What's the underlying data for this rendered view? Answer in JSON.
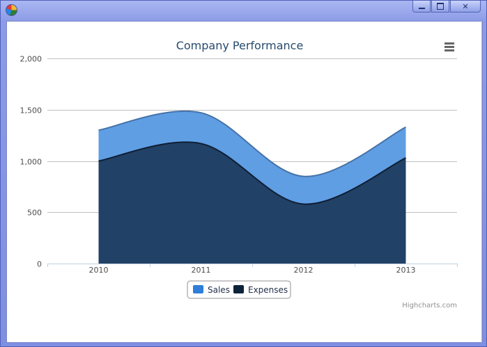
{
  "window": {
    "app_icon": "pie-chart-icon",
    "min_icon": "minimize-icon",
    "max_icon": "maximize-icon",
    "close_glyph": "✕"
  },
  "chart_data": {
    "type": "area",
    "title": "Company Performance",
    "categories": [
      "2010",
      "2011",
      "2012",
      "2013"
    ],
    "series": [
      {
        "name": "Sales",
        "values": [
          1300,
          1470,
          850,
          1330
        ],
        "color": "#5f9ee3"
      },
      {
        "name": "Expenses",
        "values": [
          1000,
          1170,
          580,
          1030
        ],
        "color": "#213f63"
      }
    ],
    "yaxis": {
      "min": 0,
      "max": 2000,
      "ticks": [
        "0",
        "500",
        "1,000",
        "1,500",
        "2,000"
      ],
      "tick_values": [
        0,
        500,
        1000,
        1500,
        2000
      ]
    },
    "grid": true,
    "legend": {
      "placement": "bottom-center"
    },
    "credits": "Highcharts.com",
    "menu_icon": "hamburger-menu-icon",
    "colors": {
      "title": "#274b6d",
      "axis_text": "#4d4d4d",
      "grid": "#c0c0c0",
      "sales_line": "#4572a7",
      "expenses_line": "#0f1f35"
    }
  }
}
